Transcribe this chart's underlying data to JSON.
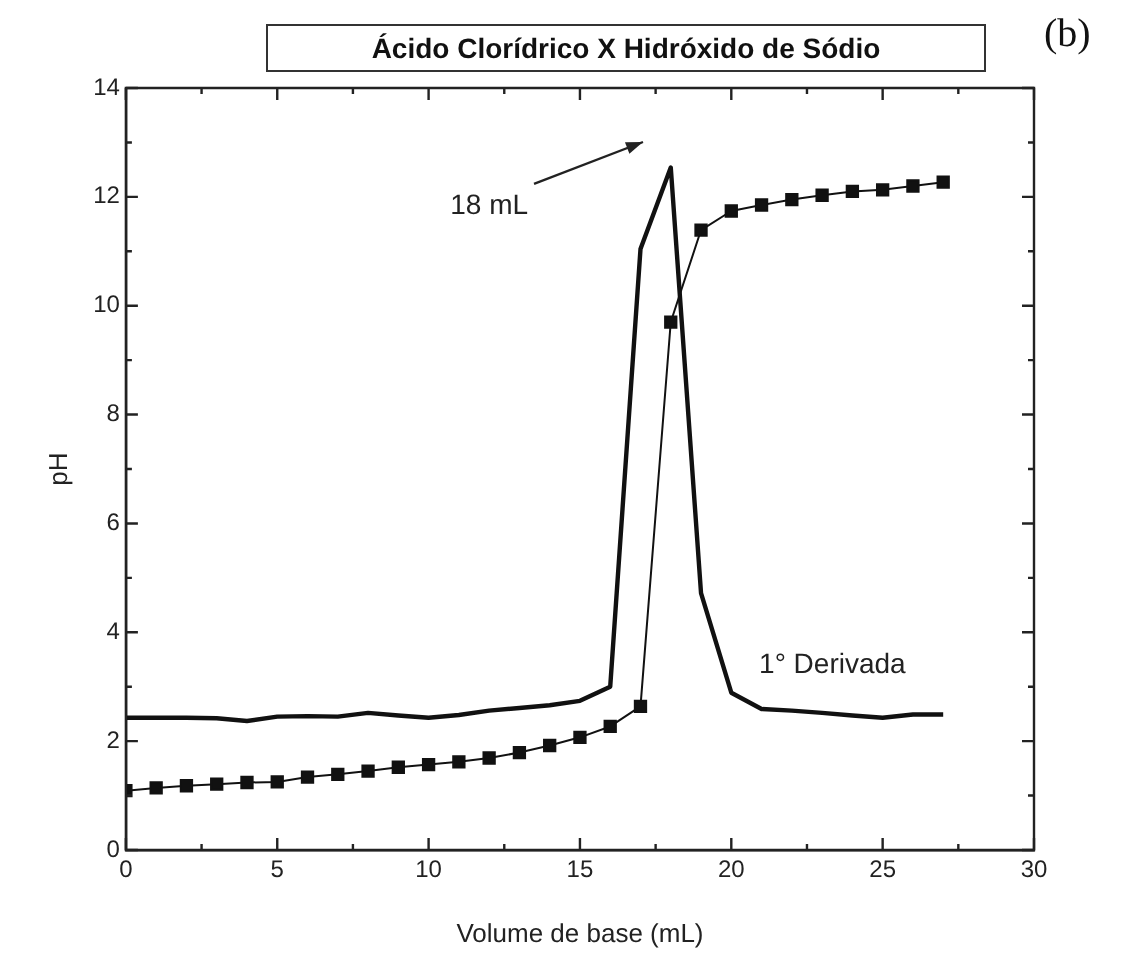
{
  "chart_data": {
    "type": "line",
    "title": "Ácido Clorídrico X Hidróxido de Sódio",
    "xlabel": "Volume de base (mL)",
    "ylabel": "pH",
    "x": [
      0,
      1,
      2,
      3,
      4,
      5,
      6,
      7,
      8,
      9,
      10,
      11,
      12,
      13,
      14,
      15,
      16,
      17,
      18,
      19,
      20,
      21,
      22,
      23,
      24,
      25,
      26,
      27
    ],
    "series": [
      {
        "color": "#111111",
        "marker": "square",
        "values": [
          1.09,
          1.14,
          1.18,
          1.21,
          1.24,
          1.25,
          1.34,
          1.39,
          1.45,
          1.52,
          1.57,
          1.62,
          1.69,
          1.79,
          1.92,
          2.07,
          2.27,
          2.64,
          9.7,
          11.39,
          11.74,
          11.85,
          11.95,
          12.03,
          12.1,
          12.13,
          12.2,
          12.27
        ]
      },
      {
        "name": "1° Derivada",
        "color": "#111111",
        "marker": "none",
        "values": [
          2.43,
          2.43,
          2.43,
          2.42,
          2.37,
          2.45,
          2.46,
          2.45,
          2.52,
          2.47,
          2.43,
          2.48,
          2.56,
          2.61,
          2.66,
          2.74,
          3.0,
          11.04,
          12.54,
          4.72,
          2.89,
          2.59,
          2.56,
          2.52,
          2.47,
          2.43,
          2.49,
          2.49
        ]
      }
    ],
    "xlim": [
      0,
      30
    ],
    "ylim": [
      0,
      14
    ],
    "xticks": [
      0,
      {
        "value": 2.5,
        "label": null
      },
      5,
      {
        "value": 7.5,
        "label": null
      },
      10,
      {
        "value": 12.5,
        "label": null
      },
      15,
      {
        "value": 17.5,
        "label": null
      },
      20,
      {
        "value": 22.5,
        "label": null
      },
      25,
      {
        "value": 27.5,
        "label": null
      },
      30
    ],
    "yticks": [
      0,
      {
        "value": 1,
        "label": null
      },
      2,
      {
        "value": 3,
        "label": null
      },
      4,
      {
        "value": 5,
        "label": null
      },
      6,
      {
        "value": 7,
        "label": null
      },
      8,
      {
        "value": 9,
        "label": null
      },
      10,
      {
        "value": 11,
        "label": null
      },
      12,
      {
        "value": 13,
        "label": null
      },
      14
    ],
    "annotations": [
      "18 mL",
      "(b)"
    ],
    "grid": false,
    "legend": false
  }
}
